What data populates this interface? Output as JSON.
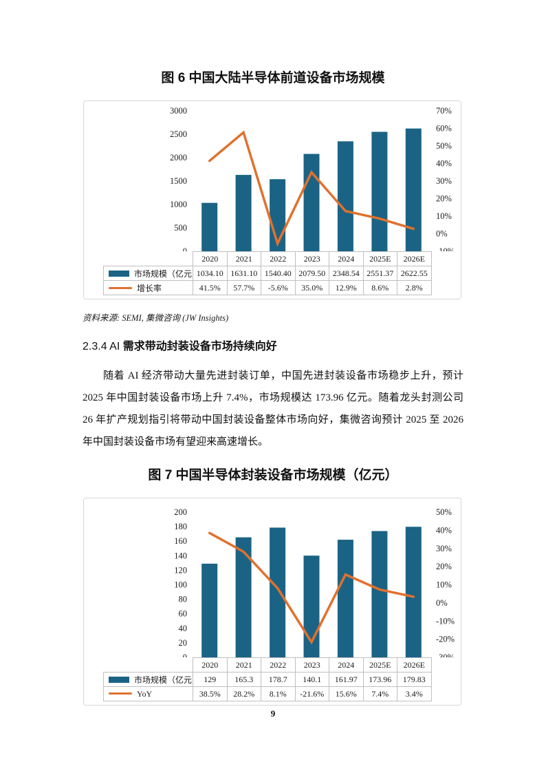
{
  "page_number": "9",
  "source_note": "资料来源: SEMI, 集微咨询 (JW Insights)",
  "section": {
    "number_prefix": "2.3.4 AI ",
    "heading_bold": "需求带动封装设备市场持续向好",
    "paragraph": "随着 AI 经济带动大量先进封装订单，中国先进封装设备市场稳步上升，预计 2025 年中国封装设备市场上升 7.4%，市场规模达 173.96 亿元。随着龙头封测公司 26 年扩产规划指引将带动中国封装设备整体市场向好，集微咨询预计 2025 至 2026 年中国封装设备市场有望迎来高速增长。"
  },
  "colors": {
    "bar": "#1B6385",
    "line": "#E0712D",
    "table_border": "#BFBFBF",
    "box_border": "#D6D6D6"
  },
  "chart_data": [
    {
      "id": "figure6",
      "type": "bar+line",
      "title": "图 6 中国大陆半导体前道设备市场规模",
      "categories": [
        "2020",
        "2021",
        "2022",
        "2023",
        "2024",
        "2025E",
        "2026E"
      ],
      "series": [
        {
          "name": "市场规模（亿元）",
          "type": "bar",
          "axis": "left",
          "values": [
            1034.1,
            1631.1,
            1540.4,
            2079.5,
            2348.54,
            2551.37,
            2622.55
          ],
          "display": [
            "1034.10",
            "1631.10",
            "1540.40",
            "2079.50",
            "2348.54",
            "2551.37",
            "2622.55"
          ]
        },
        {
          "name": "增长率",
          "type": "line",
          "axis": "right",
          "values": [
            41.5,
            57.7,
            -5.6,
            35.0,
            12.9,
            8.6,
            2.8
          ],
          "display": [
            "41.5%",
            "57.7%",
            "-5.6%",
            "35.0%",
            "12.9%",
            "8.6%",
            "2.8%"
          ]
        }
      ],
      "left_axis": {
        "min": 0,
        "max": 3000,
        "step": 500
      },
      "right_axis": {
        "min": -10,
        "max": 70,
        "step": 10,
        "suffix": "%"
      },
      "grid": false,
      "legend_position": "table-left"
    },
    {
      "id": "figure7",
      "type": "bar+line",
      "title": "图 7 中国半导体封装设备市场规模（亿元）",
      "categories": [
        "2020",
        "2021",
        "2022",
        "2023",
        "2024",
        "2025E",
        "2026E"
      ],
      "series": [
        {
          "name": "市场规模（亿元）",
          "type": "bar",
          "axis": "left",
          "values": [
            129,
            165.3,
            178.7,
            140.1,
            161.97,
            173.96,
            179.83
          ],
          "display": [
            "129",
            "165.3",
            "178.7",
            "140.1",
            "161.97",
            "173.96",
            "179.83"
          ]
        },
        {
          "name": "YoY",
          "type": "line",
          "axis": "right",
          "values": [
            38.5,
            28.2,
            8.1,
            -21.6,
            15.6,
            7.4,
            3.4
          ],
          "display": [
            "38.5%",
            "28.2%",
            "8.1%",
            "-21.6%",
            "15.6%",
            "7.4%",
            "3.4%"
          ]
        }
      ],
      "left_axis": {
        "min": 0,
        "max": 200,
        "step": 20
      },
      "right_axis": {
        "min": -30,
        "max": 50,
        "step": 10,
        "suffix": "%"
      },
      "grid": false,
      "legend_position": "table-left"
    }
  ]
}
